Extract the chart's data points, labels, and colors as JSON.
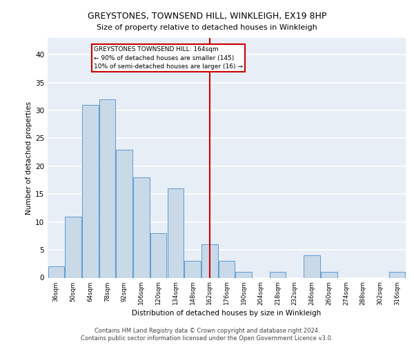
{
  "title1": "GREYSTONES, TOWNSEND HILL, WINKLEIGH, EX19 8HP",
  "title2": "Size of property relative to detached houses in Winkleigh",
  "xlabel": "Distribution of detached houses by size in Winkleigh",
  "ylabel": "Number of detached properties",
  "categories": [
    "36sqm",
    "50sqm",
    "64sqm",
    "78sqm",
    "92sqm",
    "106sqm",
    "120sqm",
    "134sqm",
    "148sqm",
    "162sqm",
    "176sqm",
    "190sqm",
    "204sqm",
    "218sqm",
    "232sqm",
    "246sqm",
    "260sqm",
    "274sqm",
    "288sqm",
    "302sqm",
    "316sqm"
  ],
  "values": [
    2,
    11,
    31,
    32,
    23,
    18,
    8,
    16,
    3,
    6,
    3,
    1,
    0,
    1,
    0,
    4,
    1,
    0,
    0,
    0,
    1
  ],
  "bar_color": "#c9d9e8",
  "bar_edge_color": "#5b9bd5",
  "vline_x": 9,
  "vline_color": "#cc0000",
  "annotation_title": "GREYSTONES TOWNSEND HILL: 164sqm",
  "annotation_line2": "← 90% of detached houses are smaller (145)",
  "annotation_line3": "10% of semi-detached houses are larger (16) →",
  "annotation_box_color": "#cc0000",
  "annotation_box_fill": "#ffffff",
  "ylim": [
    0,
    43
  ],
  "yticks": [
    0,
    5,
    10,
    15,
    20,
    25,
    30,
    35,
    40
  ],
  "footer1": "Contains HM Land Registry data © Crown copyright and database right 2024.",
  "footer2": "Contains public sector information licensed under the Open Government Licence v3.0.",
  "bg_color": "#e8eef5",
  "grid_color": "#ffffff"
}
